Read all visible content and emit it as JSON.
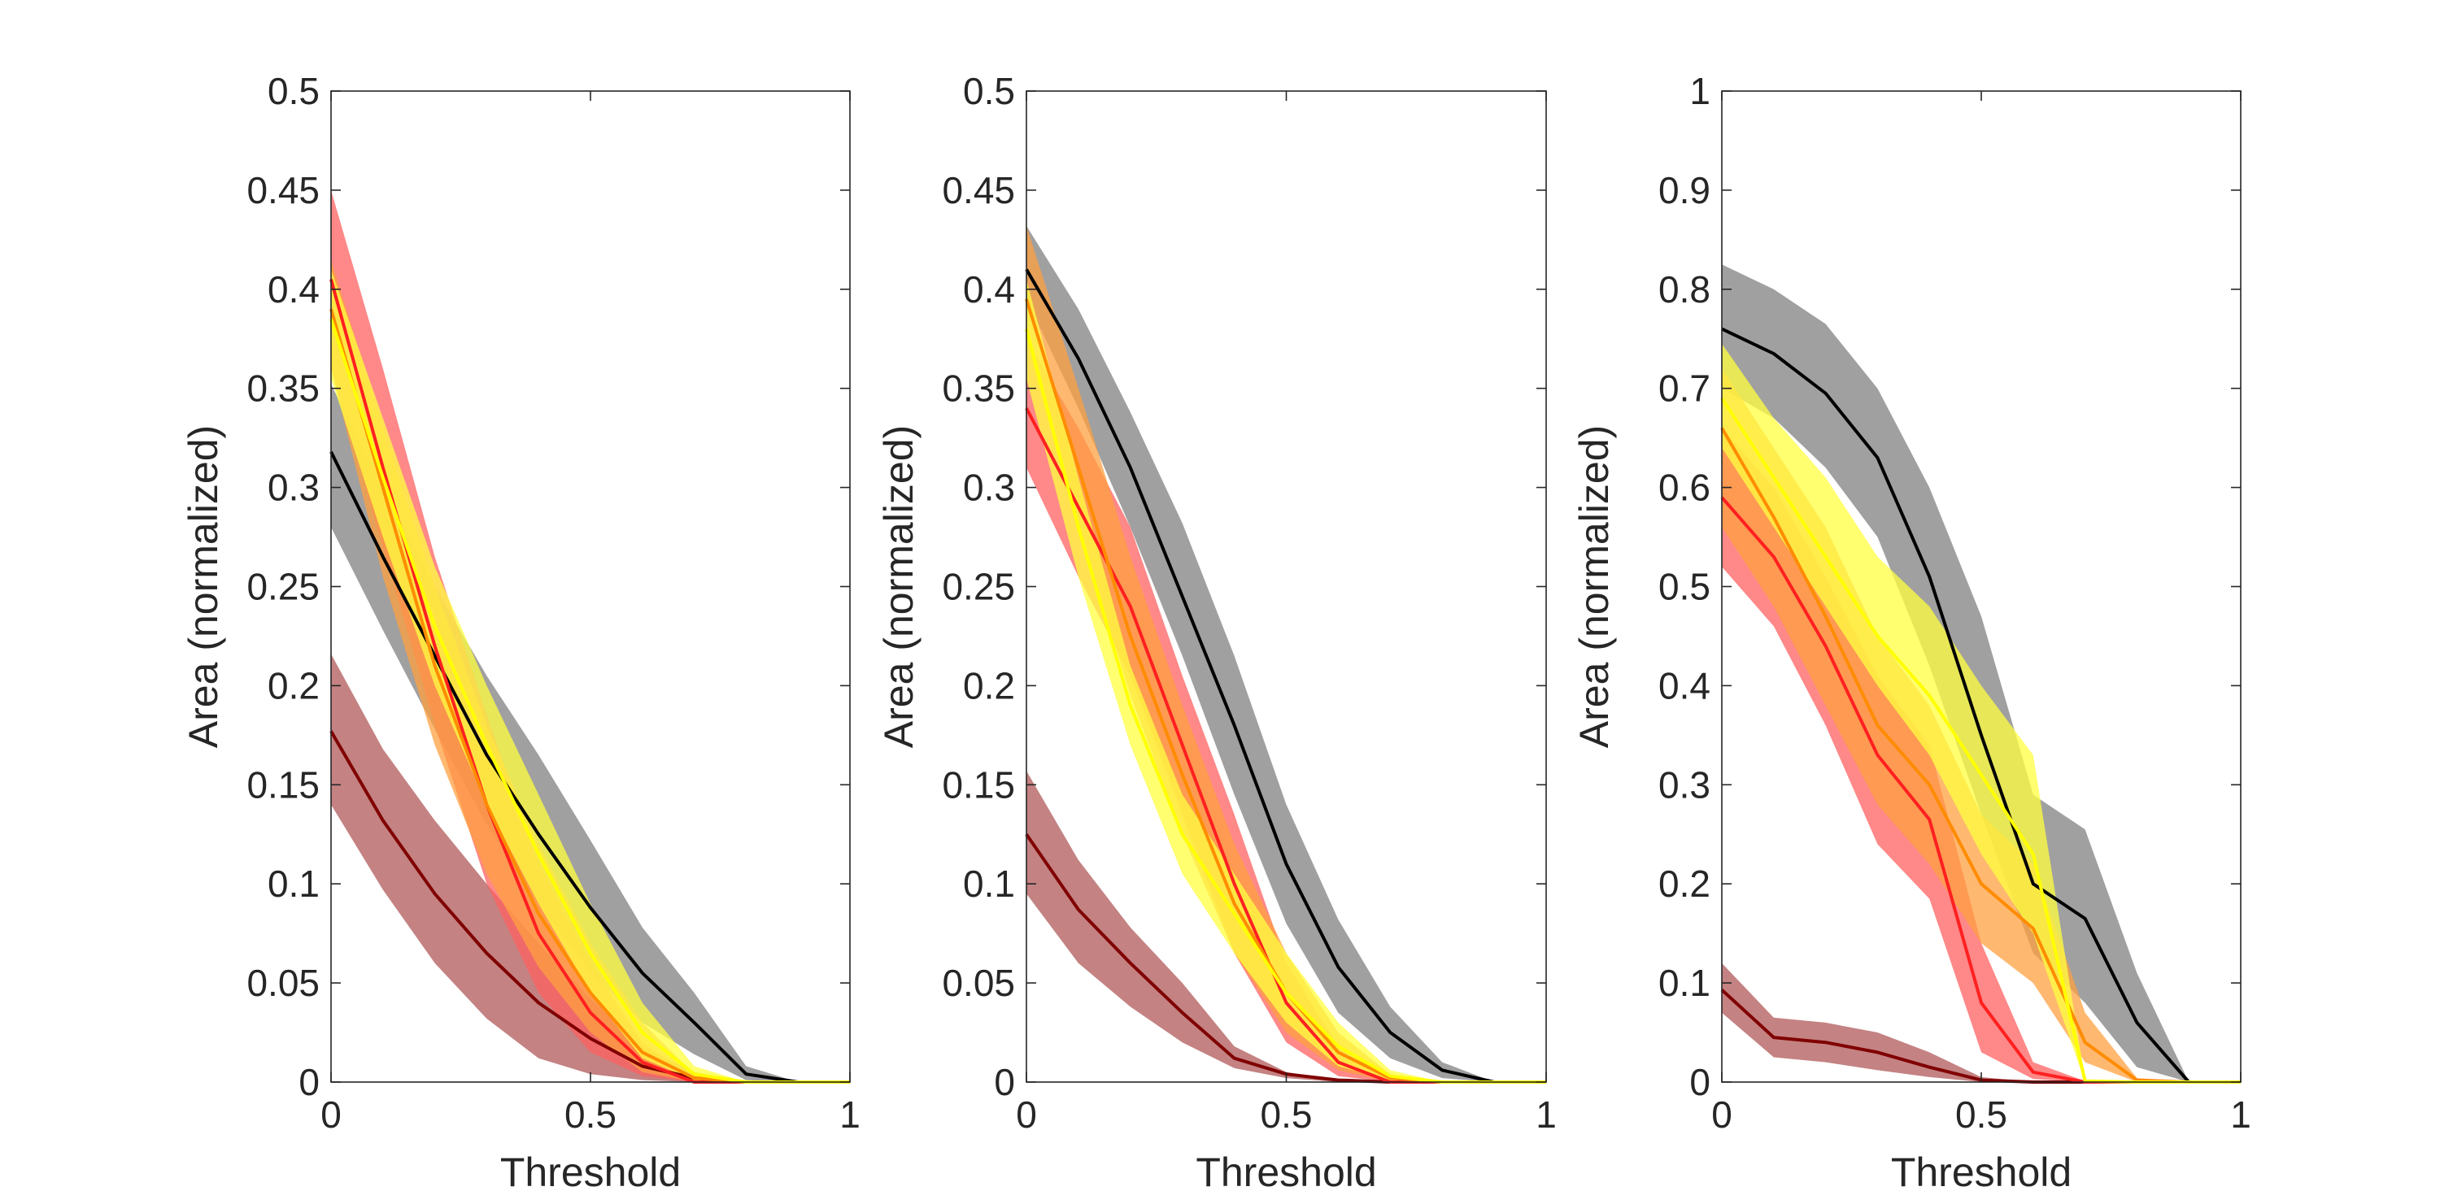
{
  "chart_data": [
    {
      "type": "line",
      "xlabel": "Threshold",
      "ylabel": "Area (normalized)",
      "xlim": [
        0,
        1
      ],
      "ylim": [
        0,
        0.5
      ],
      "xticks": [
        "0",
        "0.5",
        "1"
      ],
      "yticks": [
        "0",
        "0.05",
        "0.1",
        "0.15",
        "0.2",
        "0.25",
        "0.3",
        "0.35",
        "0.4",
        "0.45",
        "0.5"
      ],
      "x": [
        0,
        0.1,
        0.2,
        0.3,
        0.4,
        0.5,
        0.6,
        0.7,
        0.8,
        0.9,
        1.0
      ],
      "series": [
        {
          "color": "#000000",
          "band_color": "#808080",
          "mean": [
            0.318,
            0.265,
            0.215,
            0.165,
            0.125,
            0.088,
            0.055,
            0.03,
            0.004,
            0,
            0
          ],
          "lower": [
            0.28,
            0.228,
            0.178,
            0.13,
            0.09,
            0.055,
            0.03,
            0.014,
            0.001,
            0,
            0
          ],
          "upper": [
            0.352,
            0.3,
            0.25,
            0.205,
            0.165,
            0.122,
            0.078,
            0.045,
            0.008,
            0,
            0
          ]
        },
        {
          "color": "#800000",
          "band_color": "#b05858",
          "mean": [
            0.177,
            0.132,
            0.095,
            0.065,
            0.04,
            0.022,
            0.008,
            0.002,
            0,
            0,
            0
          ],
          "lower": [
            0.14,
            0.097,
            0.06,
            0.032,
            0.012,
            0.004,
            0.001,
            0,
            0,
            0,
            0
          ],
          "upper": [
            0.216,
            0.168,
            0.132,
            0.1,
            0.07,
            0.042,
            0.018,
            0.005,
            0,
            0,
            0
          ]
        },
        {
          "color": "#ff2020",
          "band_color": "#ff6060",
          "mean": [
            0.405,
            0.31,
            0.22,
            0.14,
            0.075,
            0.035,
            0.01,
            0,
            0,
            0,
            0
          ],
          "lower": [
            0.36,
            0.27,
            0.18,
            0.1,
            0.045,
            0.015,
            0.003,
            0,
            0,
            0,
            0
          ],
          "upper": [
            0.45,
            0.36,
            0.265,
            0.185,
            0.11,
            0.06,
            0.02,
            0.001,
            0,
            0,
            0
          ]
        },
        {
          "color": "#ff8c00",
          "band_color": "#ffa040",
          "mean": [
            0.39,
            0.3,
            0.21,
            0.14,
            0.085,
            0.045,
            0.015,
            0.002,
            0,
            0,
            0
          ],
          "lower": [
            0.36,
            0.255,
            0.17,
            0.105,
            0.058,
            0.025,
            0.005,
            0,
            0,
            0,
            0
          ],
          "upper": [
            0.415,
            0.33,
            0.25,
            0.18,
            0.12,
            0.07,
            0.03,
            0.004,
            0,
            0,
            0
          ]
        },
        {
          "color": "#ffff00",
          "band_color": "#ffff40",
          "mean": [
            0.385,
            0.305,
            0.23,
            0.17,
            0.115,
            0.065,
            0.025,
            0.004,
            0,
            0,
            0
          ],
          "lower": [
            0.355,
            0.275,
            0.2,
            0.14,
            0.09,
            0.045,
            0.012,
            0.001,
            0,
            0,
            0
          ],
          "upper": [
            0.41,
            0.335,
            0.26,
            0.2,
            0.145,
            0.09,
            0.04,
            0.008,
            0,
            0,
            0
          ]
        }
      ]
    },
    {
      "type": "line",
      "xlabel": "Threshold",
      "ylabel": "Area (normalized)",
      "xlim": [
        0,
        1
      ],
      "ylim": [
        0,
        0.5
      ],
      "xticks": [
        "0",
        "0.5",
        "1"
      ],
      "yticks": [
        "0",
        "0.05",
        "0.1",
        "0.15",
        "0.2",
        "0.25",
        "0.3",
        "0.35",
        "0.4",
        "0.45",
        "0.5"
      ],
      "x": [
        0,
        0.1,
        0.2,
        0.3,
        0.4,
        0.5,
        0.6,
        0.7,
        0.8,
        0.9,
        1.0
      ],
      "series": [
        {
          "color": "#000000",
          "band_color": "#808080",
          "mean": [
            0.41,
            0.365,
            0.31,
            0.245,
            0.18,
            0.11,
            0.058,
            0.025,
            0.006,
            0,
            0
          ],
          "lower": [
            0.395,
            0.34,
            0.28,
            0.215,
            0.145,
            0.08,
            0.035,
            0.012,
            0.002,
            0,
            0
          ],
          "upper": [
            0.432,
            0.39,
            0.338,
            0.282,
            0.215,
            0.14,
            0.082,
            0.038,
            0.01,
            0,
            0
          ]
        },
        {
          "color": "#800000",
          "band_color": "#b05858",
          "mean": [
            0.125,
            0.087,
            0.06,
            0.035,
            0.012,
            0.004,
            0.001,
            0,
            0,
            0,
            0
          ],
          "lower": [
            0.095,
            0.06,
            0.038,
            0.02,
            0.007,
            0.002,
            0,
            0,
            0,
            0,
            0
          ],
          "upper": [
            0.157,
            0.112,
            0.078,
            0.05,
            0.018,
            0.005,
            0.001,
            0,
            0,
            0,
            0
          ]
        },
        {
          "color": "#ff2020",
          "band_color": "#ff6060",
          "mean": [
            0.34,
            0.29,
            0.24,
            0.17,
            0.1,
            0.04,
            0.01,
            0,
            0,
            0,
            0
          ],
          "lower": [
            0.31,
            0.255,
            0.205,
            0.135,
            0.065,
            0.02,
            0.003,
            0,
            0,
            0,
            0
          ],
          "upper": [
            0.375,
            0.33,
            0.28,
            0.205,
            0.135,
            0.06,
            0.018,
            0.001,
            0,
            0,
            0
          ]
        },
        {
          "color": "#ff8c00",
          "band_color": "#ffa040",
          "mean": [
            0.395,
            0.31,
            0.225,
            0.155,
            0.09,
            0.045,
            0.015,
            0.002,
            0,
            0,
            0
          ],
          "lower": [
            0.37,
            0.28,
            0.195,
            0.125,
            0.065,
            0.025,
            0.006,
            0,
            0,
            0,
            0
          ],
          "upper": [
            0.432,
            0.35,
            0.265,
            0.19,
            0.12,
            0.065,
            0.025,
            0.004,
            0,
            0,
            0
          ]
        },
        {
          "color": "#ffff00",
          "band_color": "#ffff40",
          "mean": [
            0.38,
            0.28,
            0.19,
            0.125,
            0.085,
            0.045,
            0.018,
            0.003,
            0,
            0,
            0
          ],
          "lower": [
            0.355,
            0.255,
            0.17,
            0.105,
            0.065,
            0.03,
            0.008,
            0.001,
            0,
            0,
            0
          ],
          "upper": [
            0.405,
            0.305,
            0.21,
            0.145,
            0.105,
            0.065,
            0.03,
            0.006,
            0,
            0,
            0
          ]
        }
      ]
    },
    {
      "type": "line",
      "xlabel": "Threshold",
      "ylabel": "Area (normalized)",
      "xlim": [
        0,
        1
      ],
      "ylim": [
        0,
        1
      ],
      "xticks": [
        "0",
        "0.5",
        "1"
      ],
      "yticks": [
        "0",
        "0.1",
        "0.2",
        "0.3",
        "0.4",
        "0.5",
        "0.6",
        "0.7",
        "0.8",
        "0.9",
        "1"
      ],
      "x": [
        0,
        0.1,
        0.2,
        0.3,
        0.4,
        0.5,
        0.6,
        0.7,
        0.8,
        0.9,
        1.0
      ],
      "series": [
        {
          "color": "#000000",
          "band_color": "#808080",
          "mean": [
            0.76,
            0.735,
            0.695,
            0.63,
            0.51,
            0.35,
            0.2,
            0.165,
            0.06,
            0,
            0
          ],
          "lower": [
            0.7,
            0.67,
            0.62,
            0.55,
            0.42,
            0.27,
            0.13,
            0.08,
            0.015,
            0,
            0
          ],
          "upper": [
            0.825,
            0.8,
            0.765,
            0.7,
            0.6,
            0.47,
            0.29,
            0.255,
            0.11,
            0,
            0
          ]
        },
        {
          "color": "#800000",
          "band_color": "#b05858",
          "mean": [
            0.093,
            0.045,
            0.04,
            0.03,
            0.015,
            0.002,
            0,
            0,
            0,
            0,
            0
          ],
          "lower": [
            0.07,
            0.025,
            0.02,
            0.012,
            0.005,
            0,
            0,
            0,
            0,
            0,
            0
          ],
          "upper": [
            0.12,
            0.065,
            0.06,
            0.05,
            0.03,
            0.005,
            0,
            0,
            0,
            0,
            0
          ]
        },
        {
          "color": "#ff2020",
          "band_color": "#ff6060",
          "mean": [
            0.59,
            0.53,
            0.44,
            0.33,
            0.265,
            0.08,
            0.01,
            0,
            0,
            0,
            0
          ],
          "lower": [
            0.52,
            0.46,
            0.36,
            0.24,
            0.185,
            0.03,
            0.003,
            0,
            0,
            0,
            0
          ],
          "upper": [
            0.66,
            0.6,
            0.51,
            0.41,
            0.34,
            0.14,
            0.02,
            0.001,
            0,
            0,
            0
          ]
        },
        {
          "color": "#ff8c00",
          "band_color": "#ffa040",
          "mean": [
            0.66,
            0.57,
            0.47,
            0.36,
            0.3,
            0.2,
            0.155,
            0.04,
            0.002,
            0,
            0
          ],
          "lower": [
            0.56,
            0.48,
            0.38,
            0.28,
            0.22,
            0.14,
            0.1,
            0.02,
            0,
            0,
            0
          ],
          "upper": [
            0.72,
            0.64,
            0.56,
            0.45,
            0.38,
            0.27,
            0.22,
            0.07,
            0.004,
            0,
            0
          ]
        },
        {
          "color": "#ffff00",
          "band_color": "#ffff40",
          "mean": [
            0.69,
            0.61,
            0.53,
            0.45,
            0.39,
            0.31,
            0.23,
            0.001,
            0,
            0,
            0
          ],
          "lower": [
            0.64,
            0.56,
            0.48,
            0.4,
            0.33,
            0.23,
            0.15,
            0,
            0,
            0,
            0
          ],
          "upper": [
            0.745,
            0.67,
            0.61,
            0.53,
            0.48,
            0.4,
            0.33,
            0.002,
            0,
            0,
            0
          ]
        }
      ]
    }
  ]
}
